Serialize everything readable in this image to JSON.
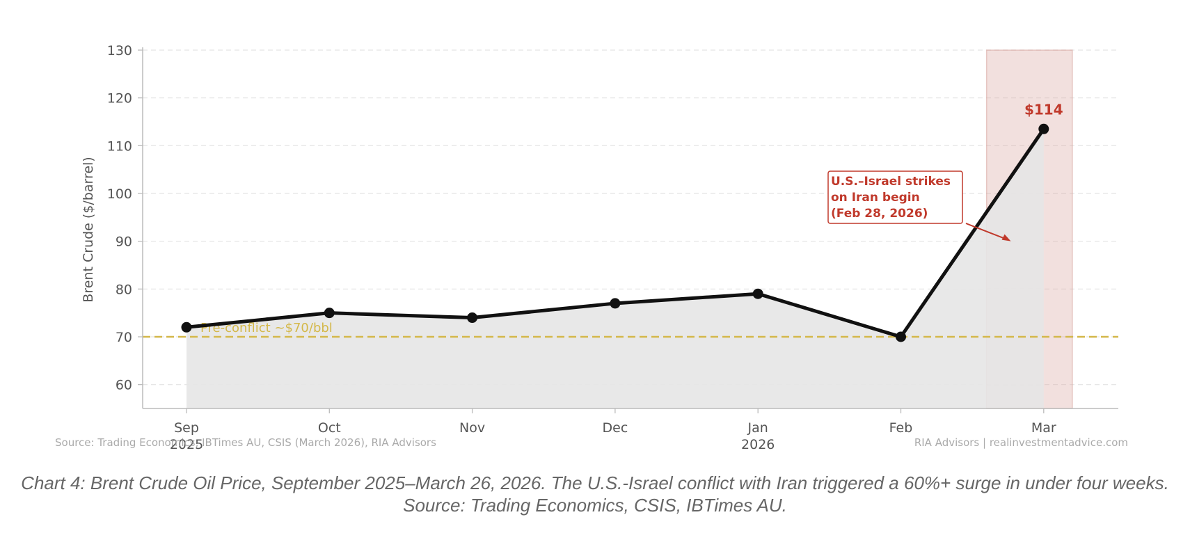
{
  "chart_data": {
    "type": "line",
    "ylabel": "Brent Crude ($/barrel)",
    "xlabel": "",
    "x": [
      "Sep",
      "Oct",
      "Nov",
      "Dec",
      "Jan",
      "Feb",
      "Mar"
    ],
    "x_sublabels": [
      "2025",
      "",
      "",
      "",
      "2026",
      "",
      ""
    ],
    "series": [
      {
        "values": [
          72,
          75,
          74,
          77,
          79,
          70,
          113.5
        ]
      }
    ],
    "ylim": [
      55,
      130
    ],
    "yticks": [
      60,
      70,
      80,
      90,
      100,
      110,
      120,
      130
    ],
    "grid": "horizontal-dashed",
    "fill_under_line": true,
    "reference_line": {
      "value": 70,
      "label": "Pre-conflict ~$70/bbl",
      "color": "#d4b84a"
    },
    "shaded_region": {
      "from": 5.6,
      "to": 6.2,
      "color": "#d9a6a0"
    },
    "annotations": [
      {
        "text_lines": [
          "U.S.–Israel strikes",
          "on Iran begin",
          "(Feb 28, 2026)"
        ],
        "color": "#c0392b",
        "arrow_to": {
          "x": 5.77,
          "y": 90
        }
      },
      {
        "text": "$114",
        "at": {
          "x": 6,
          "y": 113.5
        },
        "color": "#c0392b"
      }
    ],
    "line_color": "#111111",
    "fill_color": "#e5e5e5"
  },
  "source_left": "Source: Trading Economics, IBTimes AU, CSIS (March 2026), RIA Advisors",
  "source_right": "RIA Advisors | realinvestmentadvice.com",
  "caption": "Chart 4: Brent Crude Oil Price, September 2025–March 26, 2026. The U.S.-Israel conflict with Iran triggered a 60%+ surge in under four weeks. Source: Trading Economics, CSIS, IBTimes AU."
}
